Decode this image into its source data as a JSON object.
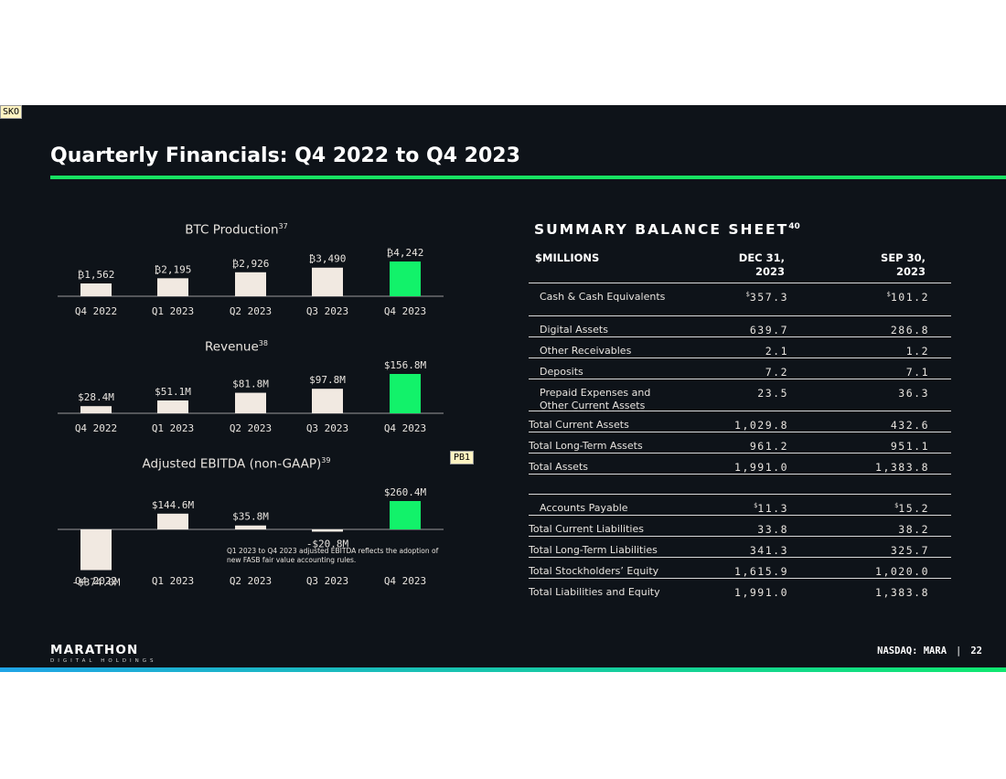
{
  "annotations": {
    "sko": "SKO",
    "pb1": "PB1"
  },
  "slide": {
    "title": "Quarterly Financials: Q4 2022 to Q4 2023",
    "accent_color": "#17e262",
    "bar_color": "#f1e9e1",
    "highlight_color": "#12f26a",
    "background": "#0e1319"
  },
  "chart_data": [
    {
      "type": "bar",
      "title": "BTC Production",
      "title_note": "37",
      "categories": [
        "Q4 2022",
        "Q1 2023",
        "Q2 2023",
        "Q3 2023",
        "Q4 2023"
      ],
      "values": [
        1562,
        2195,
        2926,
        3490,
        4242
      ],
      "labels": [
        "₿1,562",
        "₿2,195",
        "₿2,926",
        "₿3,490",
        "₿4,242"
      ],
      "highlight_index": 4
    },
    {
      "type": "bar",
      "title": "Revenue",
      "title_note": "38",
      "categories": [
        "Q4 2022",
        "Q1 2023",
        "Q2 2023",
        "Q3 2023",
        "Q4 2023"
      ],
      "values": [
        28.4,
        51.1,
        81.8,
        97.8,
        156.8
      ],
      "labels": [
        "$28.4M",
        "$51.1M",
        "$81.8M",
        "$97.8M",
        "$156.8M"
      ],
      "highlight_index": 4
    },
    {
      "type": "bar",
      "title": "Adjusted EBITDA (non-GAAP)",
      "title_note": "39",
      "categories": [
        "Q4 2022",
        "Q1 2023",
        "Q2 2023",
        "Q3 2023",
        "Q4 2023"
      ],
      "values": [
        -374.0,
        144.6,
        35.8,
        -20.8,
        260.4
      ],
      "labels": [
        "-$374.0M",
        "$144.6M",
        "$35.8M",
        "-$20.8M",
        "$260.4M"
      ],
      "highlight_index": 4,
      "footnote": "Q1 2023 to Q4 2023 adjusted EBITDA reflects the adoption of new FASB fair value accounting rules."
    }
  ],
  "balance_sheet": {
    "heading": "SUMMARY BALANCE SHEET",
    "heading_note": "40",
    "col_label": "$MILLIONS",
    "col1": [
      "DEC 31,",
      "2023"
    ],
    "col2": [
      "SEP 30,",
      "2023"
    ],
    "rows": [
      {
        "label": "Cash & Cash Equivalents",
        "v1": "357.3",
        "v2": "101.2",
        "indent": true,
        "currency": "$"
      },
      {
        "label": "Digital Assets",
        "v1": "639.7",
        "v2": "286.8",
        "indent": true
      },
      {
        "label": "Other Receivables",
        "v1": "2.1",
        "v2": "1.2",
        "indent": true
      },
      {
        "label": "Deposits",
        "v1": "7.2",
        "v2": "7.1",
        "indent": true
      },
      {
        "label": "Prepaid Expenses and Other Current Assets",
        "v1": "23.5",
        "v2": "36.3",
        "indent": true
      },
      {
        "label": "Total Current Assets",
        "v1": "1,029.8",
        "v2": "432.6"
      },
      {
        "label": "Total Long-Term Assets",
        "v1": "961.2",
        "v2": "951.1"
      },
      {
        "label": "Total Assets",
        "v1": "1,991.0",
        "v2": "1,383.8"
      },
      {
        "label": "Accounts Payable",
        "v1": "11.3",
        "v2": "15.2",
        "indent": true,
        "currency": "$"
      },
      {
        "label": "Total Current Liabilities",
        "v1": "33.8",
        "v2": "38.2"
      },
      {
        "label": "Total Long-Term Liabilities",
        "v1": "341.3",
        "v2": "325.7"
      },
      {
        "label": "Total Stockholders’ Equity",
        "v1": "1,615.9",
        "v2": "1,020.0"
      },
      {
        "label": "Total Liabilities and Equity",
        "v1": "1,991.0",
        "v2": "1,383.8"
      }
    ]
  },
  "footer": {
    "logo_main": "MARATHON",
    "logo_sub": "DIGITAL HOLDINGS",
    "ticker": "NASDAQ: MARA",
    "separator": "|",
    "page": "22"
  }
}
